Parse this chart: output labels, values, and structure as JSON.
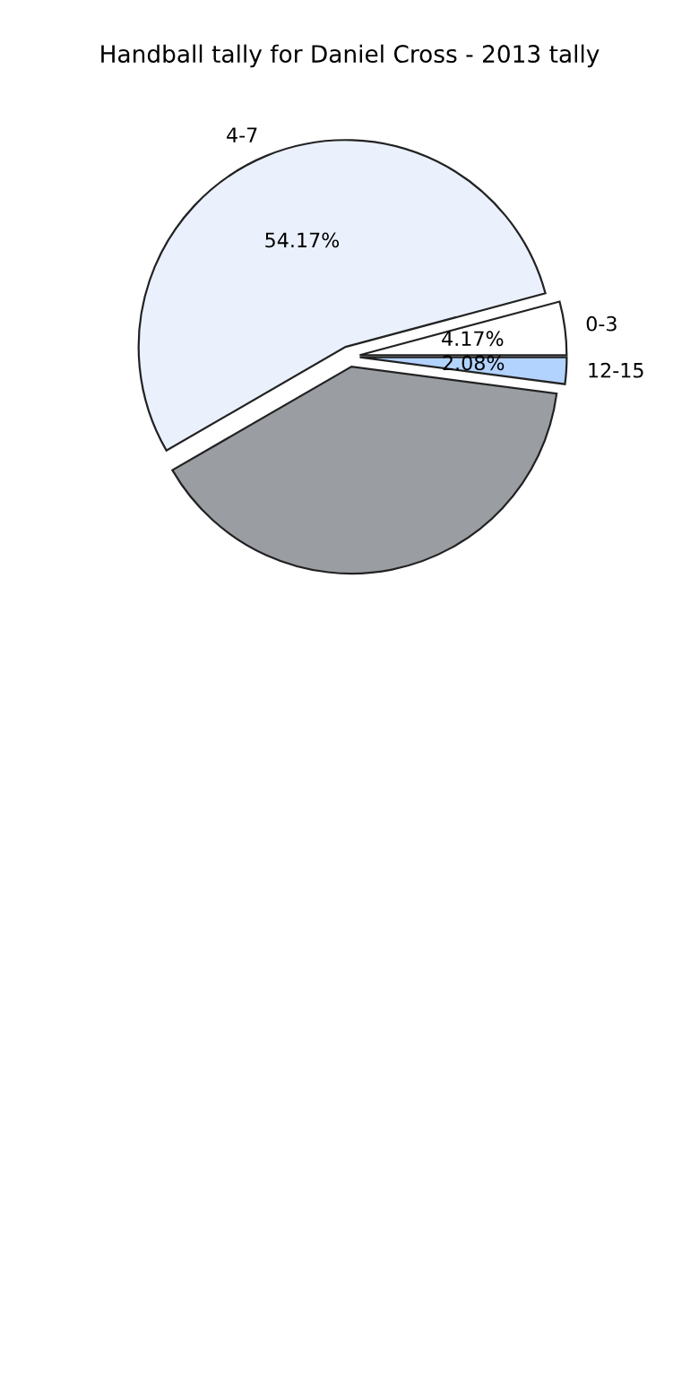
{
  "chart_data": {
    "type": "pie",
    "title": "Handball tally for Daniel Cross - 2013 tally",
    "categories": [
      "0-3",
      "4-7",
      null,
      "12-15"
    ],
    "values": [
      4.17,
      54.17,
      39.58,
      2.08
    ],
    "colors": [
      "#ffffff",
      "#eaf1fd",
      "#9a9da2",
      "#b3d3ff"
    ],
    "value_labels": [
      "4.17%",
      "54.17%",
      null,
      "2.08%"
    ]
  }
}
